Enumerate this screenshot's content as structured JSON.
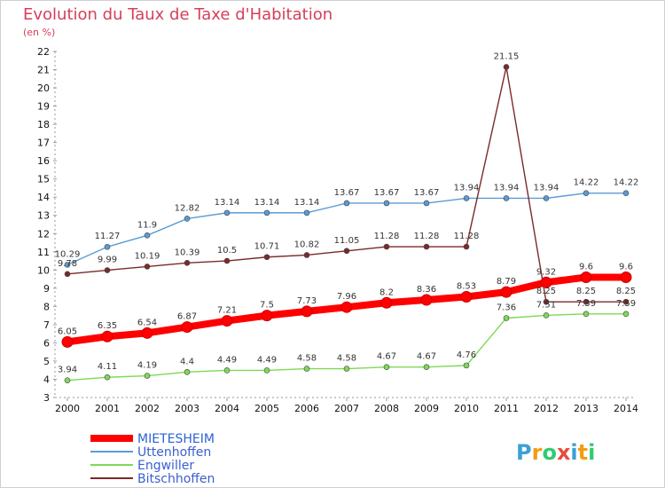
{
  "chart_data": {
    "type": "line",
    "title": "Evolution du Taux de Taxe d'Habitation",
    "subtitle": "(en %)",
    "x": [
      "2000",
      "2001",
      "2002",
      "2003",
      "2004",
      "2005",
      "2006",
      "2007",
      "2008",
      "2009",
      "2010",
      "2011",
      "2012",
      "2013",
      "2014"
    ],
    "ylim": [
      3,
      22
    ],
    "yticks": [
      3,
      4,
      5,
      6,
      7,
      8,
      9,
      10,
      11,
      12,
      13,
      14,
      15,
      16,
      17,
      18,
      19,
      20,
      21,
      22
    ],
    "grid": false,
    "legend_position": "bottom-left",
    "series": [
      {
        "name": "MIETESHEIM",
        "color": "#ff0000",
        "values": [
          6.05,
          6.35,
          6.54,
          6.87,
          7.21,
          7.5,
          7.73,
          7.96,
          8.2,
          8.36,
          8.53,
          8.79,
          9.32,
          9.6,
          9.6
        ],
        "labels": [
          "6.05",
          "6.35",
          "6.54",
          "6.87",
          "7.21",
          "7.5",
          "7.73",
          "7.96",
          "8.2",
          "8.36",
          "8.53",
          "8.79",
          "9.32",
          "9.6",
          "9.6"
        ]
      },
      {
        "name": "Uttenhoffen",
        "color": "#5b9bd5",
        "values": [
          10.29,
          11.27,
          11.9,
          12.82,
          13.14,
          13.14,
          13.14,
          13.67,
          13.67,
          13.67,
          13.94,
          13.94,
          13.94,
          14.22,
          14.22
        ],
        "labels": [
          "10.29",
          "11.27",
          "11.9",
          "12.82",
          "13.14",
          "13.14",
          "13.14",
          "13.67",
          "13.67",
          "13.67",
          "13.94",
          "13.94",
          "13.94",
          "14.22",
          "14.22"
        ]
      },
      {
        "name": "Engwiller",
        "color": "#7ed957",
        "values": [
          3.94,
          4.11,
          4.19,
          4.4,
          4.49,
          4.49,
          4.58,
          4.58,
          4.67,
          4.67,
          4.76,
          7.36,
          7.51,
          7.59,
          7.59
        ],
        "labels": [
          "3.94",
          "4.11",
          "4.19",
          "4.4",
          "4.49",
          "4.49",
          "4.58",
          "4.58",
          "4.67",
          "4.67",
          "4.76",
          "7.36",
          "7.51",
          "7.59",
          "7.59"
        ]
      },
      {
        "name": "Bitschhoffen",
        "color": "#7a2a2a",
        "values": [
          9.78,
          9.99,
          10.19,
          10.39,
          10.5,
          10.71,
          10.82,
          11.05,
          11.28,
          11.28,
          11.28,
          21.15,
          8.25,
          8.25,
          8.25
        ],
        "labels": [
          "9.78",
          "9.99",
          "10.19",
          "10.39",
          "10.5",
          "10.71",
          "10.82",
          "11.05",
          "11.28",
          "11.28",
          "11.28",
          "21.15",
          "8.25",
          "8.25",
          "8.25"
        ]
      }
    ]
  },
  "brand": {
    "text": "Proxiti",
    "letters": [
      "P",
      "r",
      "o",
      "x",
      "i",
      "t",
      "i"
    ],
    "colors": [
      "#3aa0d8",
      "#f39c12",
      "#2ecc71",
      "#e74c3c",
      "#3aa0d8",
      "#f39c12",
      "#2ecc71"
    ]
  }
}
